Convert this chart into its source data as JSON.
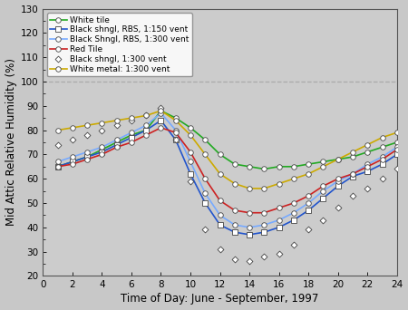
{
  "x": [
    1,
    2,
    3,
    4,
    5,
    6,
    7,
    8,
    9,
    10,
    11,
    12,
    13,
    14,
    15,
    16,
    17,
    18,
    19,
    20,
    21,
    22,
    23,
    24
  ],
  "series": {
    "White tile": {
      "color": "#22aa22",
      "marker": "o",
      "markersize": 4,
      "markercolor": "white",
      "markeredgecolor": "#444444",
      "linewidth": 1.2,
      "y": [
        65,
        67,
        69,
        72,
        75,
        78,
        80,
        88,
        85,
        81,
        76,
        70,
        66,
        65,
        64,
        65,
        65,
        66,
        67,
        68,
        69,
        71,
        73,
        75
      ]
    },
    "Black shngl, RBS, 1:150 vent": {
      "color": "#2255cc",
      "marker": "s",
      "markersize": 4,
      "markercolor": "white",
      "markeredgecolor": "#444444",
      "linewidth": 1.2,
      "y": [
        65,
        67,
        69,
        71,
        74,
        77,
        80,
        84,
        76,
        62,
        50,
        41,
        38,
        37,
        38,
        40,
        43,
        47,
        52,
        57,
        61,
        63,
        66,
        70
      ]
    },
    "Black Shngl, RBS, 1:300 vent": {
      "color": "#77aaff",
      "marker": "o",
      "markersize": 4,
      "markercolor": "white",
      "markeredgecolor": "#444444",
      "linewidth": 1.2,
      "y": [
        67,
        69,
        71,
        73,
        76,
        79,
        82,
        87,
        80,
        67,
        54,
        45,
        41,
        40,
        41,
        43,
        46,
        50,
        55,
        59,
        62,
        66,
        69,
        73
      ]
    },
    "Red Tile": {
      "color": "#cc2222",
      "marker": "o",
      "markersize": 4,
      "markercolor": "white",
      "markeredgecolor": "#444444",
      "linewidth": 1.2,
      "y": [
        65,
        66,
        68,
        70,
        73,
        75,
        78,
        81,
        79,
        71,
        60,
        51,
        47,
        46,
        46,
        48,
        50,
        53,
        57,
        60,
        62,
        65,
        68,
        72
      ]
    },
    "Black shngl, 1:300 vent": {
      "color": "#777777",
      "marker": "D",
      "markersize": 3.5,
      "markercolor": "white",
      "markeredgecolor": "#444444",
      "linewidth": 0,
      "linestyle": "none",
      "y": [
        74,
        76,
        78,
        80,
        82,
        84,
        86,
        89,
        76,
        59,
        39,
        31,
        27,
        26,
        28,
        29,
        33,
        39,
        43,
        48,
        53,
        56,
        60,
        64
      ]
    },
    "White metal: 1:300 vent": {
      "color": "#ccaa00",
      "marker": "o",
      "markersize": 4,
      "markercolor": "white",
      "markeredgecolor": "#444444",
      "linewidth": 1.2,
      "y": [
        80,
        81,
        82,
        83,
        84,
        85,
        86,
        88,
        84,
        78,
        70,
        62,
        58,
        56,
        56,
        58,
        60,
        62,
        65,
        68,
        71,
        74,
        77,
        79
      ]
    }
  },
  "xlim": [
    0,
    24
  ],
  "ylim": [
    20,
    130
  ],
  "xticks": [
    0,
    2,
    4,
    6,
    8,
    10,
    12,
    14,
    16,
    18,
    20,
    22,
    24
  ],
  "yticks": [
    20,
    30,
    40,
    50,
    60,
    70,
    80,
    90,
    100,
    110,
    120,
    130
  ],
  "xlabel": "Time of Day: June - September, 1997",
  "ylabel": "Mid Attic Relative Humidity (%)",
  "hline_y": 100,
  "hline_color": "#aaaaaa",
  "hline_style": "--",
  "outer_bg_color": "#c8c8c8",
  "plot_bg_color": "#cccccc",
  "legend_fontsize": 6.5,
  "axis_fontsize": 8.5,
  "tick_fontsize": 7.5
}
